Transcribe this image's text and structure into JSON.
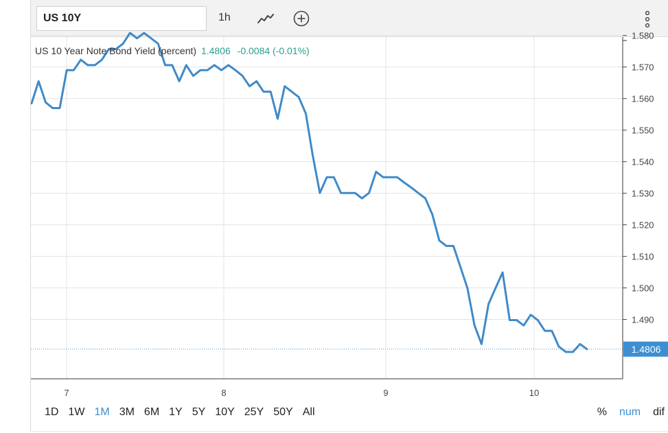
{
  "toolbar": {
    "symbol": "US 10Y",
    "interval": "1h",
    "icons": [
      "line-chart-icon",
      "add-circle-icon",
      "more-vertical-icon"
    ]
  },
  "legend": {
    "title": "US 10 Year Note Bond Yield (percent)",
    "value": "1.4806",
    "change": "-0.0084 (-0.01%)"
  },
  "ranges": [
    "1D",
    "1W",
    "1M",
    "3M",
    "6M",
    "1Y",
    "5Y",
    "10Y",
    "25Y",
    "50Y",
    "All"
  ],
  "active_range": "1M",
  "modes": [
    "%",
    "num",
    "dif"
  ],
  "active_mode": "num",
  "colors": {
    "line": "#3f8ac9",
    "accent": "#3d8fd1",
    "positive": "#2a9d8f",
    "grid": "#e3e3e3"
  },
  "chart_data": {
    "type": "line",
    "title": "US 10 Year Note Bond Yield (percent)",
    "x_ticks": [
      "7",
      "8",
      "9",
      "10"
    ],
    "y_ticks": [
      "1.580",
      "1.570",
      "1.560",
      "1.550",
      "1.540",
      "1.530",
      "1.520",
      "1.510",
      "1.500",
      "1.490"
    ],
    "ylim": [
      1.4712,
      1.5795
    ],
    "grid": true,
    "last_value": "1.4806",
    "series": [
      {
        "values": [
          1.5585,
          1.5655,
          1.5588,
          1.557,
          1.557,
          1.569,
          1.569,
          1.5723,
          1.5706,
          1.5706,
          1.5723,
          1.5757,
          1.5757,
          1.5774,
          1.5808,
          1.5791,
          1.5808,
          1.5791,
          1.5774,
          1.5706,
          1.5706,
          1.5655,
          1.5706,
          1.5672,
          1.569,
          1.569,
          1.5706,
          1.569,
          1.5706,
          1.569,
          1.5672,
          1.5639,
          1.5655,
          1.5622,
          1.5622,
          1.5536,
          1.5639,
          1.5622,
          1.5605,
          1.5553,
          1.5419,
          1.5301,
          1.5351,
          1.5351,
          1.5301,
          1.5301,
          1.5301,
          1.5284,
          1.5301,
          1.5368,
          1.5351,
          1.5351,
          1.5351,
          1.5334,
          1.5318,
          1.5301,
          1.5284,
          1.5233,
          1.515,
          1.5133,
          1.5133,
          1.5066,
          1.4999,
          1.4881,
          1.4822,
          1.4949,
          1.5,
          1.5049,
          1.4898,
          1.4898,
          1.4881,
          1.4915,
          1.4898,
          1.4864,
          1.4864,
          1.4814,
          1.4797,
          1.4797,
          1.4822,
          1.4806
        ]
      }
    ]
  }
}
